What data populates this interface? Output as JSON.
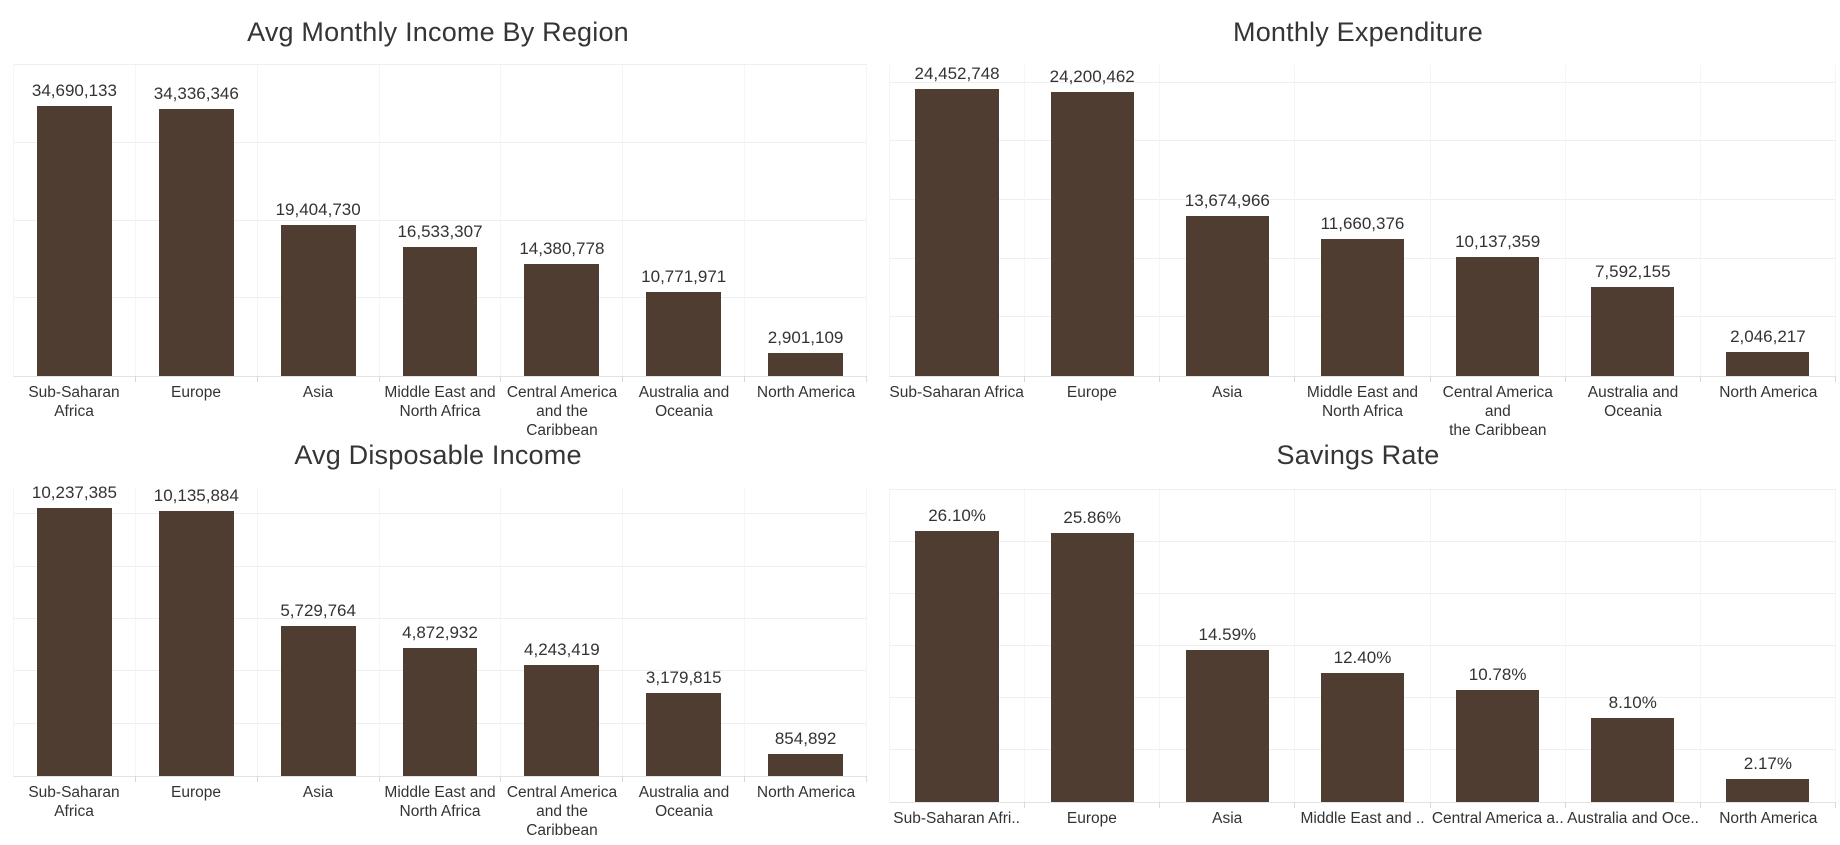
{
  "dashboard": {
    "background": "#ffffff",
    "bar_color": "#4e3d30",
    "title_color": "#353535",
    "label_color": "#333333",
    "gridline_color": "#efefef"
  },
  "chart_data": [
    {
      "type": "bar",
      "title": "Avg Monthly Income By Region",
      "categories": [
        "Sub-Saharan\nAfrica",
        "Europe",
        "Asia",
        "Middle East and\nNorth Africa",
        "Central America\nand the Caribbean",
        "Australia and\nOceania",
        "North America"
      ],
      "values": [
        34690133,
        34336346,
        19404730,
        16533307,
        14380778,
        10771971,
        2901109
      ],
      "value_labels": [
        "34,690,133",
        "34,336,346",
        "19,404,730",
        "16,533,307",
        "14,380,778",
        "10,771,971",
        "2,901,109"
      ],
      "xlabel": "",
      "ylabel": "",
      "ylim": [
        0,
        40000000
      ],
      "grid_step": 10000000,
      "grid": "horizontal",
      "legend": "none"
    },
    {
      "type": "bar",
      "title": "Monthly Expenditure",
      "categories": [
        "Sub-Saharan Africa",
        "Europe",
        "Asia",
        "Middle East and\nNorth Africa",
        "Central America and\nthe Caribbean",
        "Australia and\nOceania",
        "North America"
      ],
      "values": [
        24452748,
        24200462,
        13674966,
        11660376,
        10137359,
        7592155,
        2046217
      ],
      "value_labels": [
        "24,452,748",
        "24,200,462",
        "13,674,966",
        "11,660,376",
        "10,137,359",
        "7,592,155",
        "2,046,217"
      ],
      "xlabel": "",
      "ylabel": "",
      "ylim": [
        0,
        26500000
      ],
      "grid_step": 5000000,
      "grid": "horizontal",
      "legend": "none"
    },
    {
      "type": "bar",
      "title": "Avg Disposable Income",
      "categories": [
        "Sub-Saharan\nAfrica",
        "Europe",
        "Asia",
        "Middle East and\nNorth Africa",
        "Central America\nand the Caribbean",
        "Australia and\nOceania",
        "North America"
      ],
      "values": [
        10237385,
        10135884,
        5729764,
        4872932,
        4243419,
        3179815,
        854892
      ],
      "value_labels": [
        "10,237,385",
        "10,135,884",
        "5,729,764",
        "4,872,932",
        "4,243,419",
        "3,179,815",
        "854,892"
      ],
      "xlabel": "",
      "ylabel": "",
      "ylim": [
        0,
        11000000
      ],
      "grid_step": 2000000,
      "grid": "horizontal",
      "legend": "none"
    },
    {
      "type": "bar",
      "title": "Savings Rate",
      "categories": [
        "Sub-Saharan Afri..",
        "Europe",
        "Asia",
        "Middle East and ..",
        "Central America a..",
        "Australia and Oce..",
        "North America"
      ],
      "values": [
        26.1,
        25.86,
        14.59,
        12.4,
        10.78,
        8.1,
        2.17
      ],
      "value_labels": [
        "26.10%",
        "25.86%",
        "14.59%",
        "12.40%",
        "10.78%",
        "8.10%",
        "2.17%"
      ],
      "xlabel": "",
      "ylabel": "",
      "ylim": [
        0,
        30.2
      ],
      "grid_step": 5,
      "grid": "horizontal",
      "legend": "none"
    }
  ]
}
